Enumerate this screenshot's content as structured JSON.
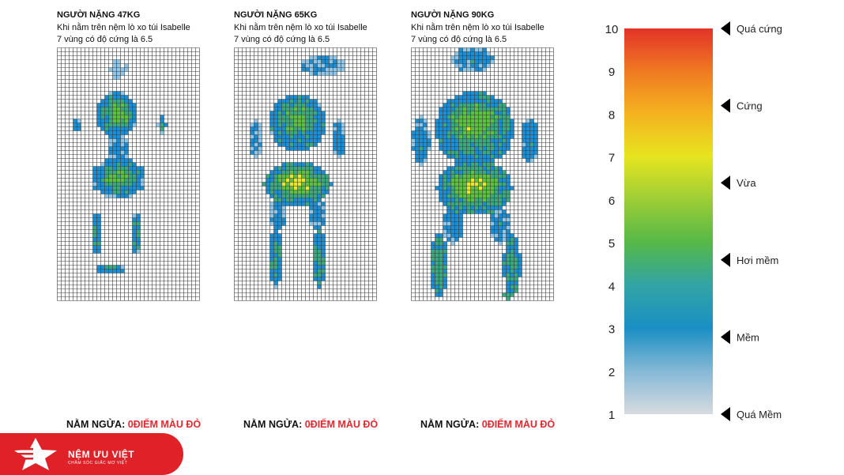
{
  "panels": [
    {
      "title": "NGƯỜI NẶNG 47KG",
      "line1": "Khi nằm trên nệm lò xo túi Isabelle",
      "line2": "7 vùng có độ cứng là 6.5",
      "caption_label": "NẰM NGỬA: ",
      "caption_value": "0ĐIỂM MÀU ĐỎ"
    },
    {
      "title": "NGƯỜI NẶNG 65KG",
      "line1": "Khi nằm trên nệm lò xo túi Isabelle",
      "line2": "7 vùng có độ cứng là 6.5",
      "caption_label": "NẰM NGỬA: ",
      "caption_value": "0ĐIỂM MÀU ĐỎ"
    },
    {
      "title": "NGƯỜI NẶNG 90KG",
      "line1": "Khi nằm trên nệm lò xo túi Isabelle",
      "line2": "7 vùng có độ cứng là 6.5",
      "caption_label": "NẰM NGỬA: ",
      "caption_value": "0ĐIỂM MÀU ĐỎ"
    }
  ],
  "chart_data": {
    "type": "heatmap",
    "grid": {
      "cols": 36,
      "rows": 64
    },
    "colorbar": {
      "ticks": [
        1,
        2,
        3,
        4,
        5,
        6,
        7,
        8,
        9,
        10
      ],
      "range": [
        1,
        10
      ],
      "colors": [
        "#d7dbe0",
        "#86b8d6",
        "#1a8fc4",
        "#32a4a6",
        "#55b848",
        "#9ccd36",
        "#e6e51f",
        "#f4b31f",
        "#ef7a22",
        "#e23328"
      ],
      "labels": [
        {
          "value": 10,
          "text": "Quá cứng"
        },
        {
          "value": 8.2,
          "text": "Cứng"
        },
        {
          "value": 6.4,
          "text": "Vừa"
        },
        {
          "value": 4.6,
          "text": "Hơi mềm"
        },
        {
          "value": 2.8,
          "text": "Mềm"
        },
        {
          "value": 1,
          "text": "Quá Mềm"
        }
      ]
    },
    "levels": {
      "1": "#8ec7ea",
      "2": "#1b8fd6",
      "3": "#3aa97f",
      "4": "#5cc040",
      "5": "#e8e627"
    },
    "figures": [
      {
        "name": "47KG",
        "blobs": [
          {
            "cx": 15.5,
            "cy": 5.5,
            "rx": 2.5,
            "ry": 2.5,
            "v": 1
          },
          {
            "cx": 15.0,
            "cy": 17.0,
            "rx": 5.2,
            "ry": 6.0,
            "v": 2.8
          },
          {
            "cx": 15.5,
            "cy": 16.5,
            "rx": 3.0,
            "ry": 3.5,
            "v": 4.2
          },
          {
            "cx": 5.0,
            "cy": 19.5,
            "rx": 1.0,
            "ry": 2.2,
            "v": 2.3
          },
          {
            "cx": 26.5,
            "cy": 19.5,
            "rx": 1.0,
            "ry": 2.2,
            "v": 2.3
          },
          {
            "cx": 15.5,
            "cy": 26.0,
            "rx": 3.0,
            "ry": 4.0,
            "v": 2
          },
          {
            "cx": 15.5,
            "cy": 33.0,
            "rx": 7.0,
            "ry": 5.0,
            "v": 2.6
          },
          {
            "cx": 15.5,
            "cy": 33.0,
            "rx": 4.5,
            "ry": 2.5,
            "v": 4.0
          },
          {
            "cx": 10.0,
            "cy": 47.0,
            "rx": 1.3,
            "ry": 5.5,
            "v": 2.6
          },
          {
            "cx": 20.0,
            "cy": 47.0,
            "rx": 1.3,
            "ry": 5.5,
            "v": 2.6
          },
          {
            "cx": 13.5,
            "cy": 56.0,
            "rx": 3.8,
            "ry": 1.0,
            "v": 2.8
          }
        ]
      },
      {
        "name": "65KG",
        "blobs": [
          {
            "cx": 22.5,
            "cy": 4.5,
            "rx": 5.5,
            "ry": 2.6,
            "v": 1.7
          },
          {
            "cx": 16.0,
            "cy": 19.0,
            "rx": 7.0,
            "ry": 7.5,
            "v": 2.9
          },
          {
            "cx": 16.0,
            "cy": 18.0,
            "rx": 4.0,
            "ry": 4.0,
            "v": 4.1
          },
          {
            "cx": 5.5,
            "cy": 23.0,
            "rx": 2.0,
            "ry": 5.0,
            "v": 2
          },
          {
            "cx": 26.5,
            "cy": 23.0,
            "rx": 2.0,
            "ry": 5.0,
            "v": 2
          },
          {
            "cx": 16.0,
            "cy": 34.5,
            "rx": 8.5,
            "ry": 5.5,
            "v": 3.2
          },
          {
            "cx": 16.0,
            "cy": 34.0,
            "rx": 6.0,
            "ry": 3.2,
            "v": 4.8
          },
          {
            "cx": 11.0,
            "cy": 42.0,
            "rx": 2.0,
            "ry": 4.0,
            "v": 2
          },
          {
            "cx": 21.0,
            "cy": 42.0,
            "rx": 2.0,
            "ry": 4.0,
            "v": 2
          },
          {
            "cx": 10.5,
            "cy": 53.0,
            "rx": 1.6,
            "ry": 8.0,
            "v": 2.8
          },
          {
            "cx": 21.5,
            "cy": 53.0,
            "rx": 1.6,
            "ry": 8.0,
            "v": 2.8
          }
        ]
      },
      {
        "name": "90KG",
        "blobs": [
          {
            "cx": 15.5,
            "cy": 3.0,
            "rx": 5.5,
            "ry": 3.2,
            "v": 2
          },
          {
            "cx": 16.0,
            "cy": 20.5,
            "rx": 10.0,
            "ry": 9.5,
            "v": 3.0
          },
          {
            "cx": 16.0,
            "cy": 19.0,
            "rx": 6.5,
            "ry": 5.5,
            "v": 4.3
          },
          {
            "cx": 2.5,
            "cy": 23.5,
            "rx": 2.2,
            "ry": 6.0,
            "v": 2.2
          },
          {
            "cx": 30.0,
            "cy": 23.5,
            "rx": 2.2,
            "ry": 6.0,
            "v": 2.2
          },
          {
            "cx": 16.0,
            "cy": 35.5,
            "rx": 9.5,
            "ry": 7.0,
            "v": 3.3
          },
          {
            "cx": 16.0,
            "cy": 35.0,
            "rx": 6.5,
            "ry": 4.0,
            "v": 4.7
          },
          {
            "cx": 10.5,
            "cy": 45.0,
            "rx": 3.0,
            "ry": 4.5,
            "v": 2
          },
          {
            "cx": 22.5,
            "cy": 45.0,
            "rx": 3.0,
            "ry": 4.5,
            "v": 2
          },
          {
            "cx": 7.0,
            "cy": 55.0,
            "rx": 2.2,
            "ry": 8.0,
            "v": 3.0
          },
          {
            "cx": 25.5,
            "cy": 55.0,
            "rx": 2.2,
            "ry": 8.0,
            "v": 3.0
          },
          {
            "cx": 24.5,
            "cy": 62.5,
            "rx": 1.3,
            "ry": 1.0,
            "v": 3.6
          }
        ]
      }
    ]
  },
  "logo": {
    "brand": "NỆM ƯU VIỆT",
    "tagline": "CHĂM SÓC GIẤC MƠ VIỆT",
    "color": "#e02127"
  }
}
